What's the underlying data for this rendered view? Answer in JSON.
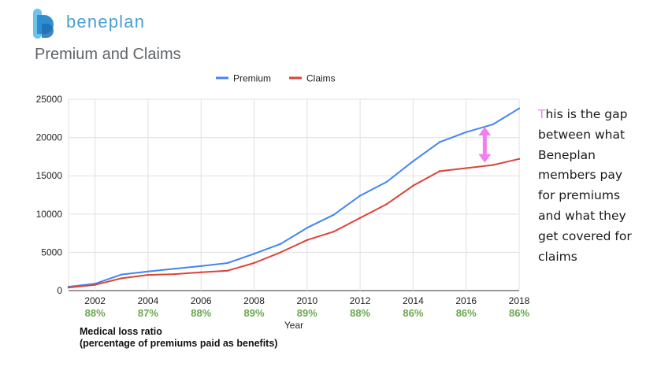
{
  "brand": {
    "name": "beneplan",
    "logo_icon": "beneplan-logo-icon",
    "logo_colors": [
      "#6fc3ea",
      "#2f8ed0",
      "#1d6fb5"
    ]
  },
  "page_title": "Premium and Claims",
  "chart_data": {
    "type": "line",
    "title": "",
    "xlabel": "Year",
    "ylabel": "",
    "xlim": [
      2001,
      2018
    ],
    "ylim": [
      0,
      25000
    ],
    "x_ticks": [
      2002,
      2004,
      2006,
      2008,
      2010,
      2012,
      2014,
      2016,
      2018
    ],
    "y_ticks": [
      0,
      5000,
      10000,
      15000,
      20000,
      25000
    ],
    "grid": true,
    "legend_position": "top-center",
    "x": [
      2001,
      2002,
      2003,
      2004,
      2005,
      2006,
      2007,
      2008,
      2009,
      2010,
      2011,
      2012,
      2013,
      2014,
      2015,
      2016,
      2017,
      2018
    ],
    "series": [
      {
        "name": "Premium",
        "color": "#4285f4",
        "values": [
          500,
          900,
          2100,
          2500,
          2850,
          3200,
          3600,
          4800,
          6100,
          8200,
          9900,
          12400,
          14200,
          16900,
          19400,
          20700,
          21700,
          23800
        ]
      },
      {
        "name": "Claims",
        "color": "#db4437",
        "values": [
          400,
          750,
          1600,
          2050,
          2150,
          2400,
          2600,
          3600,
          5000,
          6600,
          7700,
          9500,
          11300,
          13700,
          15600,
          16000,
          16400,
          17200
        ]
      }
    ],
    "medical_loss_ratio": {
      "color": "#6aa84f",
      "years": [
        2002,
        2004,
        2006,
        2008,
        2010,
        2012,
        2014,
        2016,
        2018
      ],
      "labels": [
        "88%",
        "87%",
        "88%",
        "89%",
        "89%",
        "88%",
        "86%",
        "86%",
        "86%"
      ]
    },
    "gap_marker": {
      "year": 2017,
      "from": 16400,
      "to": 21700,
      "color": "#f07ff0"
    }
  },
  "mlr_note": {
    "line1": "Medical loss ratio",
    "line2": "(percentage of premiums paid as benefits)"
  },
  "annotation": {
    "first_letter": "T",
    "line1_rest": "his is the gap",
    "line2": "between what",
    "line3": "Beneplan",
    "line4": "members pay",
    "line5": "for premiums",
    "line6": "and what they",
    "line7": "get covered for",
    "line8": "claims"
  }
}
